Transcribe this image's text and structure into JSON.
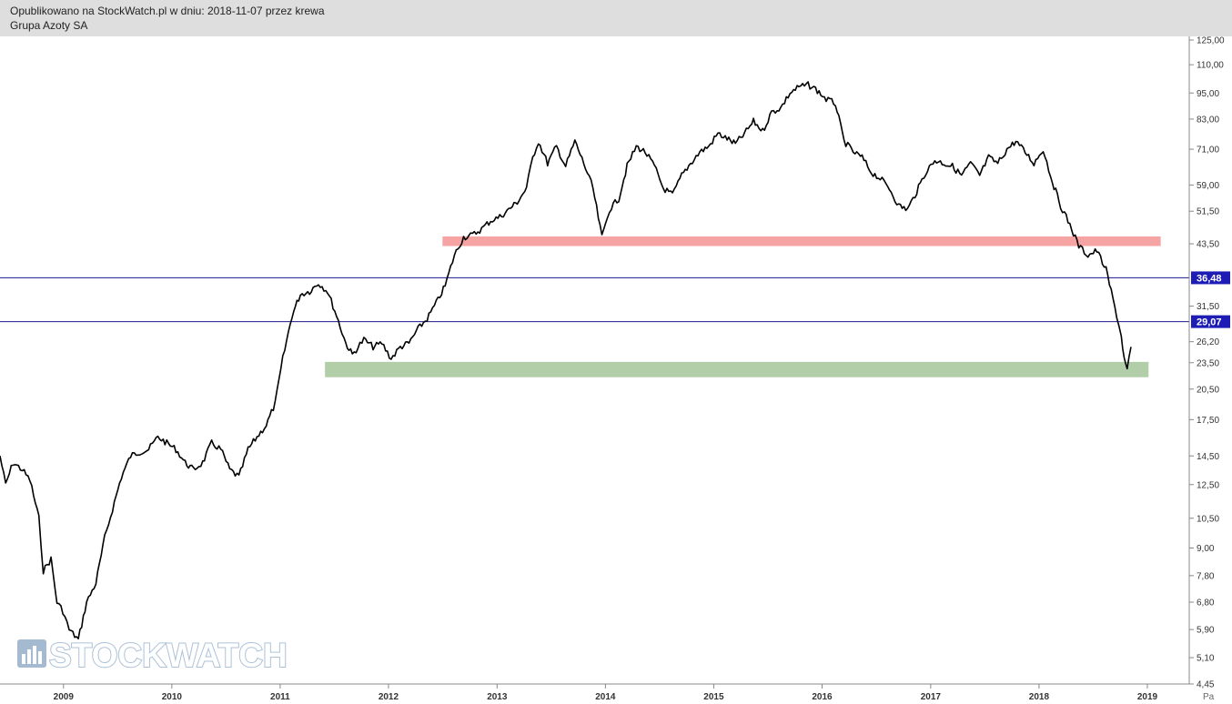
{
  "header": {
    "line1": "Opublikowano na StockWatch.pl w dniu: 2018-11-07 przez krewa",
    "line2": "Grupa Azoty SA"
  },
  "watermark": {
    "text": "STOCKWATCH",
    "icon": "bar-chart-icon"
  },
  "colors": {
    "price": "#000000",
    "hline": "#1a1a8c",
    "resistance_zone": "#f6a3a3",
    "support_zone": "#b1cea8",
    "label_bg": "#1d1db5"
  },
  "chart_data": {
    "type": "line",
    "scale": "log",
    "ylim": [
      4.45,
      125.0
    ],
    "y_ticks": [
      "125,00",
      "110,00",
      "95,00",
      "83,00",
      "71,00",
      "59,00",
      "51,50",
      "43,50",
      "31,50",
      "26,20",
      "23,50",
      "20,50",
      "17,50",
      "14,50",
      "12,50",
      "10,50",
      "9,00",
      "7,80",
      "6,80",
      "5,90",
      "5,10",
      "4,45"
    ],
    "x_ticks": [
      "2009",
      "2010",
      "2011",
      "2012",
      "2013",
      "2014",
      "2015",
      "2016",
      "2017",
      "2018",
      "2019"
    ],
    "x_cut_label": "Pa",
    "xlim": [
      "2008-06-01",
      "2019-10-01"
    ],
    "series": [
      {
        "x": [
          "2008-06-01",
          "2008-06-20",
          "2008-07-15",
          "2008-08-15",
          "2008-09-10",
          "2008-10-10",
          "2008-10-25",
          "2008-11-20",
          "2008-12-10",
          "2008-12-30",
          "2009-01-20",
          "2009-02-20",
          "2009-03-20",
          "2009-04-20",
          "2009-05-20",
          "2009-06-15",
          "2009-07-15",
          "2009-08-15",
          "2009-09-15",
          "2009-10-15",
          "2009-11-15",
          "2009-12-15",
          "2010-01-15",
          "2010-02-15",
          "2010-03-15",
          "2010-04-15",
          "2010-05-15",
          "2010-06-15",
          "2010-07-15",
          "2010-08-15",
          "2010-09-15",
          "2010-10-15",
          "2010-11-15",
          "2010-12-15",
          "2011-01-10",
          "2011-02-10",
          "2011-03-10",
          "2011-04-10",
          "2011-05-10",
          "2011-06-10",
          "2011-07-10",
          "2011-08-10",
          "2011-09-01",
          "2011-10-10",
          "2011-11-10",
          "2011-12-10",
          "2012-01-10",
          "2012-02-10",
          "2012-03-10",
          "2012-04-10",
          "2012-05-10",
          "2012-06-10",
          "2012-07-10",
          "2012-08-10",
          "2012-09-10",
          "2012-10-10",
          "2012-11-10",
          "2012-12-10",
          "2013-01-10",
          "2013-02-10",
          "2013-03-10",
          "2013-04-10",
          "2013-05-01",
          "2013-05-20",
          "2013-06-20",
          "2013-07-20",
          "2013-08-20",
          "2013-09-20",
          "2013-10-20",
          "2013-11-20",
          "2013-12-20",
          "2014-01-15",
          "2014-02-15",
          "2014-03-15",
          "2014-04-15",
          "2014-05-15",
          "2014-06-15",
          "2014-07-15",
          "2014-08-15",
          "2014-09-15",
          "2014-10-15",
          "2014-11-15",
          "2014-12-15",
          "2015-01-15",
          "2015-02-15",
          "2015-03-15",
          "2015-04-15",
          "2015-05-15",
          "2015-06-15",
          "2015-07-15",
          "2015-08-15",
          "2015-09-15",
          "2015-10-15",
          "2015-11-15",
          "2015-12-10",
          "2016-01-15",
          "2016-02-15",
          "2016-03-15",
          "2016-04-15",
          "2016-05-15",
          "2016-06-15",
          "2016-07-15",
          "2016-08-15",
          "2016-09-15",
          "2016-10-15",
          "2016-11-15",
          "2016-12-15",
          "2017-01-15",
          "2017-02-15",
          "2017-03-15",
          "2017-04-15",
          "2017-05-15",
          "2017-06-15",
          "2017-07-15",
          "2017-08-15",
          "2017-09-15",
          "2017-10-15",
          "2017-11-15",
          "2017-12-15",
          "2018-01-15",
          "2018-02-15",
          "2018-03-15",
          "2018-04-15",
          "2018-05-15",
          "2018-06-15",
          "2018-07-15",
          "2018-08-15",
          "2018-09-01",
          "2018-09-20",
          "2018-10-05",
          "2018-10-15",
          "2018-10-25",
          "2018-11-07"
        ],
        "y": [
          14.5,
          12.5,
          14.0,
          13.5,
          12.8,
          10.5,
          8.0,
          8.5,
          6.8,
          6.5,
          5.9,
          5.6,
          6.8,
          7.5,
          9.5,
          11.0,
          13.0,
          14.5,
          14.8,
          15.0,
          16.0,
          15.5,
          15.0,
          14.0,
          13.5,
          14.0,
          15.5,
          15.0,
          13.5,
          13.0,
          15.0,
          16.0,
          17.0,
          19.0,
          24.0,
          30.0,
          33.5,
          34.0,
          35.5,
          34.0,
          30.0,
          26.0,
          24.5,
          26.5,
          25.5,
          26.0,
          24.0,
          25.5,
          26.0,
          28.0,
          29.5,
          32.0,
          35.0,
          41.0,
          45.0,
          45.5,
          47.0,
          49.0,
          50.0,
          52.0,
          54.0,
          58.0,
          68.0,
          74.0,
          66.0,
          72.0,
          65.0,
          74.0,
          66.0,
          58.0,
          45.0,
          52.0,
          55.0,
          65.0,
          72.0,
          70.0,
          65.0,
          58.0,
          56.0,
          62.0,
          66.0,
          70.0,
          72.0,
          77.0,
          75.0,
          73.0,
          77.0,
          82.0,
          78.0,
          86.0,
          88.0,
          95.0,
          98.0,
          99.0,
          97.0,
          92.0,
          90.0,
          74.0,
          70.0,
          68.0,
          63.0,
          61.0,
          58.0,
          53.0,
          52.0,
          57.0,
          63.0,
          67.0,
          66.0,
          65.0,
          62.0,
          66.0,
          62.0,
          68.0,
          66.0,
          71.0,
          74.0,
          70.0,
          66.0,
          71.0,
          60.0,
          53.0,
          48.0,
          43.0,
          41.0,
          42.0,
          38.0,
          34.0,
          30.0,
          27.0,
          24.0,
          22.5,
          25.5
        ]
      }
    ],
    "horizontal_lines": [
      {
        "label": "36,48",
        "value": 36.48
      },
      {
        "label": "29,07",
        "value": 29.07
      }
    ],
    "zones": [
      {
        "kind": "resistance",
        "x0": "2012-07-01",
        "x1": "2019-02-15",
        "y_low": 43.0,
        "y_high": 45.2
      },
      {
        "kind": "support",
        "x0": "2011-06-01",
        "x1": "2019-01-05",
        "y_low": 21.8,
        "y_high": 23.6
      }
    ]
  }
}
